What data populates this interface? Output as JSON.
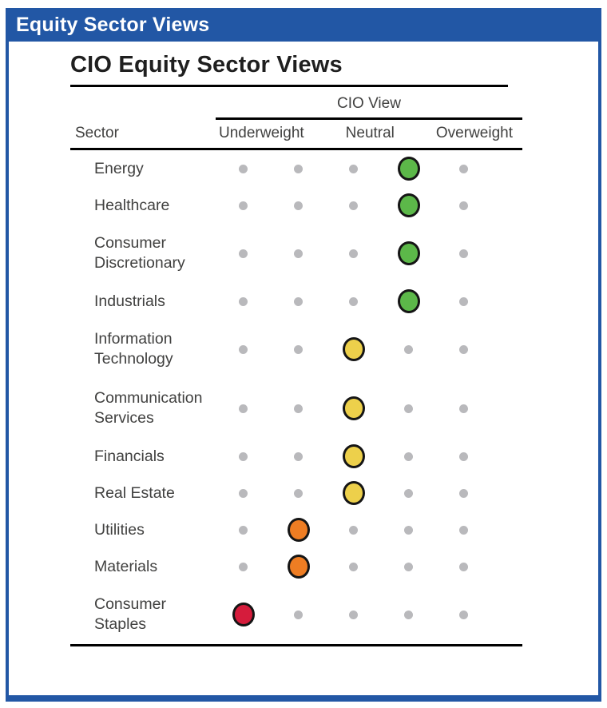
{
  "window": {
    "title": "Equity Sector Views"
  },
  "colors": {
    "panel_blue": "#2257A5",
    "overweight_green": "#5cb849",
    "neutral_yellow": "#edd04b",
    "moderate_underweight_orange": "#ee7d23",
    "underweight_red": "#d51c3c",
    "inactive_dot_gray": "#b9b9bc"
  },
  "chart_data": {
    "type": "table",
    "title": "CIO Equity Sector Views",
    "group_header": "CIO View",
    "sector_column_header": "Sector",
    "scale_labels": [
      "Underweight",
      "Neutral",
      "Overweight"
    ],
    "scale_points": 5,
    "note": "Each row shows a 5-point dot scale; position 1 = far underweight, 3 = neutral, 5 = far overweight. The filled colored dot marks the CIO view.",
    "rows": [
      {
        "sector": "Energy",
        "position": 4,
        "view": "Overweight",
        "color": "#5cb849",
        "two_line": false
      },
      {
        "sector": "Healthcare",
        "position": 4,
        "view": "Overweight",
        "color": "#5cb849",
        "two_line": false
      },
      {
        "sector": "Consumer Discretionary",
        "position": 4,
        "view": "Overweight",
        "color": "#5cb849",
        "two_line": true
      },
      {
        "sector": "Industrials",
        "position": 4,
        "view": "Overweight",
        "color": "#5cb849",
        "two_line": false
      },
      {
        "sector": "Information Technology",
        "position": 3,
        "view": "Neutral",
        "color": "#edd04b",
        "two_line": true
      },
      {
        "sector": "Communication Services",
        "position": 3,
        "view": "Neutral",
        "color": "#edd04b",
        "two_line": true
      },
      {
        "sector": "Financials",
        "position": 3,
        "view": "Neutral",
        "color": "#edd04b",
        "two_line": false
      },
      {
        "sector": "Real Estate",
        "position": 3,
        "view": "Neutral",
        "color": "#edd04b",
        "two_line": false
      },
      {
        "sector": "Utilities",
        "position": 2,
        "view": "Moderate Underweight",
        "color": "#ee7d23",
        "two_line": false
      },
      {
        "sector": "Materials",
        "position": 2,
        "view": "Moderate Underweight",
        "color": "#ee7d23",
        "two_line": false
      },
      {
        "sector": "Consumer Staples",
        "position": 1,
        "view": "Underweight",
        "color": "#d51c3c",
        "two_line": true
      }
    ]
  }
}
